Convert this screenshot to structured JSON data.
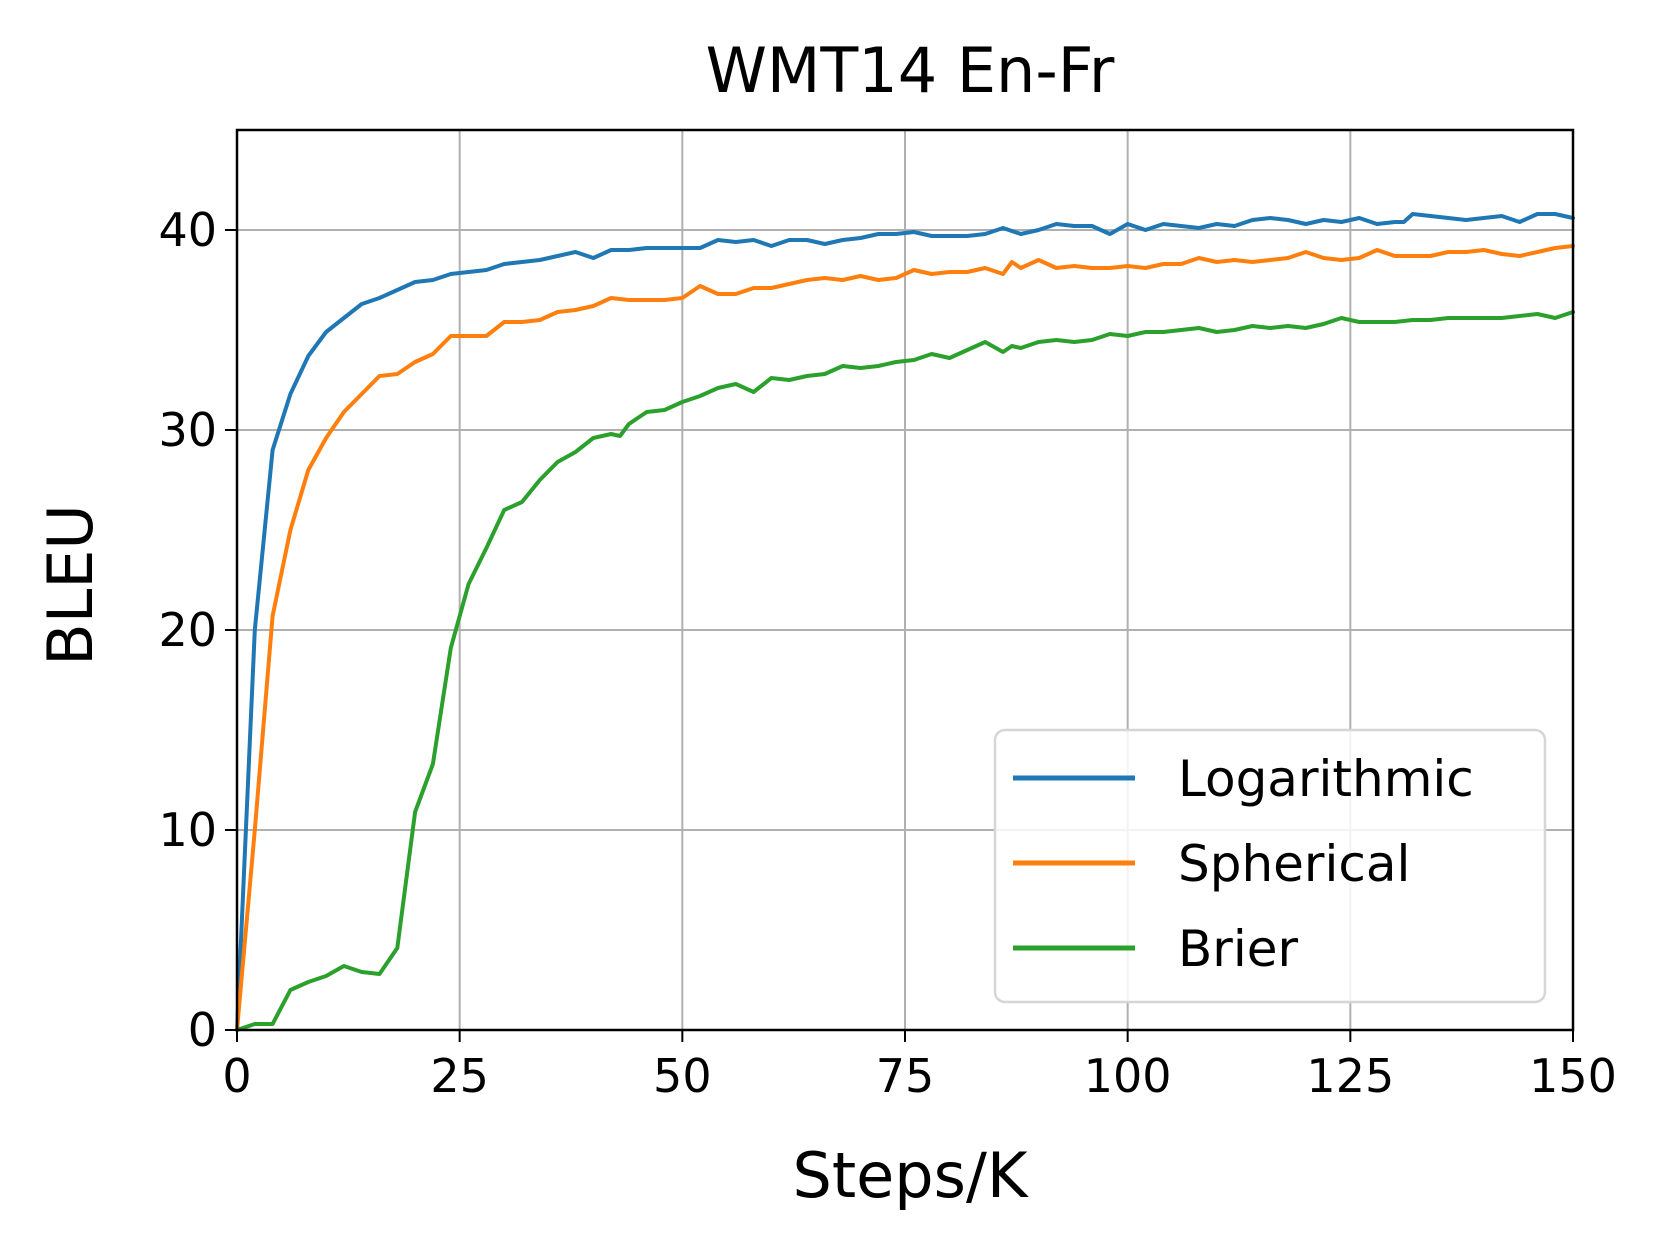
{
  "chart_data": {
    "type": "line",
    "title": "WMT14 En-Fr",
    "xlabel": "Steps/K",
    "ylabel": "BLEU",
    "xlim": [
      0,
      150
    ],
    "ylim": [
      0,
      45
    ],
    "xticks": [
      0,
      25,
      50,
      75,
      100,
      125,
      150
    ],
    "yticks": [
      0,
      10,
      20,
      30,
      40
    ],
    "grid": true,
    "legend_position": "lower-right",
    "series": [
      {
        "name": "Logarithmic",
        "color": "#1f77b4",
        "x": [
          0,
          2,
          4,
          6,
          8,
          10,
          12,
          14,
          16,
          18,
          20,
          22,
          24,
          26,
          28,
          30,
          32,
          34,
          36,
          38,
          40,
          42,
          44,
          46,
          48,
          50,
          52,
          54,
          56,
          58,
          60,
          62,
          64,
          66,
          68,
          70,
          72,
          74,
          76,
          78,
          80,
          82,
          84,
          86,
          88,
          90,
          92,
          94,
          96,
          98,
          100,
          102,
          104,
          106,
          108,
          110,
          112,
          114,
          116,
          118,
          120,
          122,
          124,
          126,
          128,
          130,
          131,
          132,
          134,
          136,
          138,
          140,
          142,
          144,
          146,
          148,
          150
        ],
        "y": [
          0,
          20.0,
          29.0,
          31.8,
          33.7,
          34.9,
          35.6,
          36.3,
          36.6,
          37.0,
          37.4,
          37.5,
          37.8,
          37.9,
          38.0,
          38.3,
          38.4,
          38.5,
          38.7,
          38.9,
          38.6,
          39.0,
          39.0,
          39.1,
          39.1,
          39.1,
          39.1,
          39.5,
          39.4,
          39.5,
          39.2,
          39.5,
          39.5,
          39.3,
          39.5,
          39.6,
          39.8,
          39.8,
          39.9,
          39.7,
          39.7,
          39.7,
          39.8,
          40.1,
          39.8,
          40.0,
          40.3,
          40.2,
          40.2,
          39.8,
          40.3,
          40.0,
          40.3,
          40.2,
          40.1,
          40.3,
          40.2,
          40.5,
          40.6,
          40.5,
          40.3,
          40.5,
          40.4,
          40.6,
          40.3,
          40.4,
          40.4,
          40.8,
          40.7,
          40.6,
          40.5,
          40.6,
          40.7,
          40.4,
          40.8,
          40.8,
          40.6
        ]
      },
      {
        "name": "Spherical",
        "color": "#ff7f0e",
        "x": [
          0,
          2,
          4,
          6,
          8,
          10,
          12,
          14,
          16,
          18,
          20,
          22,
          24,
          26,
          28,
          30,
          32,
          34,
          36,
          38,
          40,
          42,
          44,
          46,
          48,
          50,
          52,
          54,
          56,
          58,
          60,
          62,
          64,
          66,
          68,
          70,
          72,
          74,
          76,
          78,
          80,
          82,
          84,
          86,
          87,
          88,
          90,
          92,
          94,
          96,
          98,
          100,
          102,
          104,
          106,
          108,
          110,
          112,
          114,
          116,
          118,
          120,
          122,
          124,
          126,
          128,
          130,
          132,
          134,
          136,
          138,
          140,
          142,
          144,
          146,
          148,
          150
        ],
        "y": [
          0,
          10.0,
          20.7,
          25.0,
          28.0,
          29.6,
          30.9,
          31.8,
          32.7,
          32.8,
          33.4,
          33.8,
          34.7,
          34.7,
          34.7,
          35.4,
          35.4,
          35.5,
          35.9,
          36.0,
          36.2,
          36.6,
          36.5,
          36.5,
          36.5,
          36.6,
          37.2,
          36.8,
          36.8,
          37.1,
          37.1,
          37.3,
          37.5,
          37.6,
          37.5,
          37.7,
          37.5,
          37.6,
          38.0,
          37.8,
          37.9,
          37.9,
          38.1,
          37.8,
          38.4,
          38.1,
          38.5,
          38.1,
          38.2,
          38.1,
          38.1,
          38.2,
          38.1,
          38.3,
          38.3,
          38.6,
          38.4,
          38.5,
          38.4,
          38.5,
          38.6,
          38.9,
          38.6,
          38.5,
          38.6,
          39.0,
          38.7,
          38.7,
          38.7,
          38.9,
          38.9,
          39.0,
          38.8,
          38.7,
          38.9,
          39.1,
          39.2
        ]
      },
      {
        "name": "Brier",
        "color": "#2ca02c",
        "x": [
          0,
          2,
          4,
          6,
          8,
          10,
          12,
          14,
          16,
          18,
          20,
          22,
          24,
          26,
          28,
          30,
          32,
          34,
          36,
          38,
          40,
          42,
          43,
          44,
          46,
          48,
          50,
          52,
          54,
          56,
          58,
          60,
          62,
          64,
          66,
          68,
          70,
          72,
          74,
          76,
          78,
          80,
          82,
          84,
          86,
          87,
          88,
          90,
          92,
          94,
          96,
          98,
          100,
          102,
          104,
          106,
          108,
          110,
          112,
          114,
          116,
          118,
          120,
          122,
          124,
          126,
          128,
          130,
          132,
          134,
          136,
          138,
          140,
          142,
          144,
          146,
          148,
          150
        ],
        "y": [
          0,
          0.3,
          0.3,
          2.0,
          2.4,
          2.7,
          3.2,
          2.9,
          2.8,
          4.1,
          10.9,
          13.3,
          19.1,
          22.3,
          24.1,
          26.0,
          26.4,
          27.5,
          28.4,
          28.9,
          29.6,
          29.8,
          29.7,
          30.3,
          30.9,
          31.0,
          31.4,
          31.7,
          32.1,
          32.3,
          31.9,
          32.6,
          32.5,
          32.7,
          32.8,
          33.2,
          33.1,
          33.2,
          33.4,
          33.5,
          33.8,
          33.6,
          34.0,
          34.4,
          33.9,
          34.2,
          34.1,
          34.4,
          34.5,
          34.4,
          34.5,
          34.8,
          34.7,
          34.9,
          34.9,
          35.0,
          35.1,
          34.9,
          35.0,
          35.2,
          35.1,
          35.2,
          35.1,
          35.3,
          35.6,
          35.4,
          35.4,
          35.4,
          35.5,
          35.5,
          35.6,
          35.6,
          35.6,
          35.6,
          35.7,
          35.8,
          35.6,
          35.9
        ]
      }
    ]
  }
}
